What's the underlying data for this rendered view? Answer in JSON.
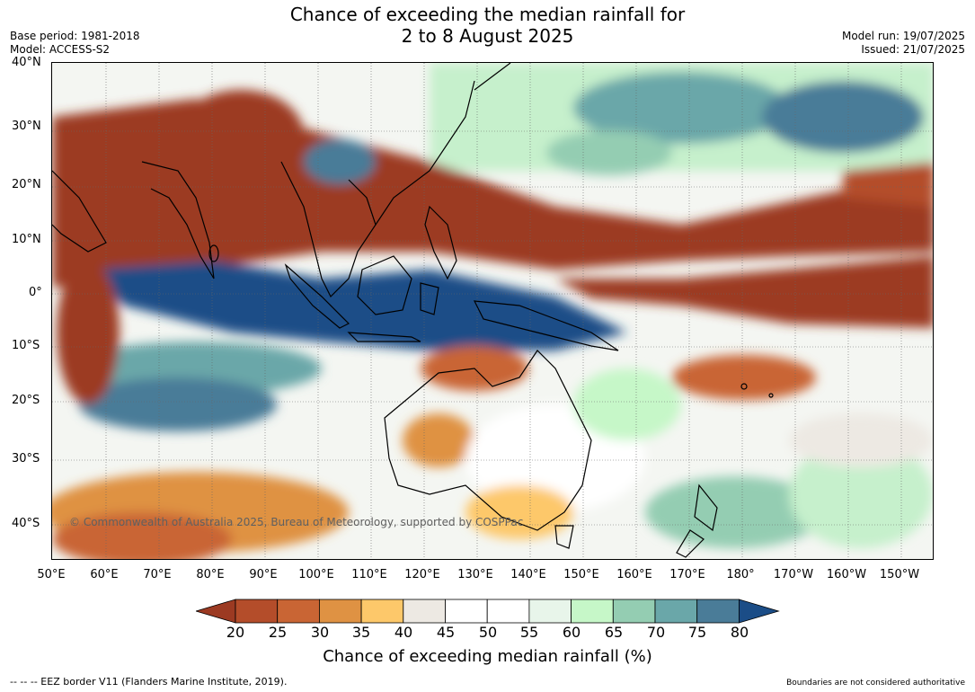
{
  "title_line1": "Chance of exceeding the median rainfall for",
  "title_line2": "2 to 8 August 2025",
  "meta_left": {
    "base_period": "Base period: 1981-2018",
    "model": "Model: ACCESS-S2"
  },
  "meta_right": {
    "model_run": "Model run: 19/07/2025",
    "issued": "Issued: 21/07/2025"
  },
  "lat_labels": [
    "40°N",
    "30°N",
    "20°N",
    "10°N",
    "0°",
    "10°S",
    "20°S",
    "30°S",
    "40°S"
  ],
  "lon_labels": [
    "50°E",
    "60°E",
    "70°E",
    "80°E",
    "90°E",
    "100°E",
    "110°E",
    "120°E",
    "130°E",
    "140°E",
    "150°E",
    "160°E",
    "170°E",
    "180°",
    "170°W",
    "160°W",
    "150°W"
  ],
  "colorbar": {
    "ticks": [
      "20",
      "25",
      "30",
      "35",
      "40",
      "45",
      "50",
      "55",
      "60",
      "65",
      "70",
      "75",
      "80"
    ],
    "colors": [
      "#9c3a22",
      "#b44d2a",
      "#c96534",
      "#df9243",
      "#fdc86a",
      "#ede9e3",
      "#ffffff",
      "#ffffff",
      "#e8f5ea",
      "#c6f7c8",
      "#94cdb2",
      "#6aa7a9",
      "#4a7c98",
      "#1b4d87"
    ],
    "label": "Chance of exceeding median rainfall (%)"
  },
  "copyright": "© Commonwealth of Australia 2025, Bureau of Meteorology, supported by COSPPac",
  "eez_note": "--  --  -- EEZ border V11 (Flanders Marine Institute, 2019).",
  "boundaries_note": "Boundaries are not considered authoritative"
}
